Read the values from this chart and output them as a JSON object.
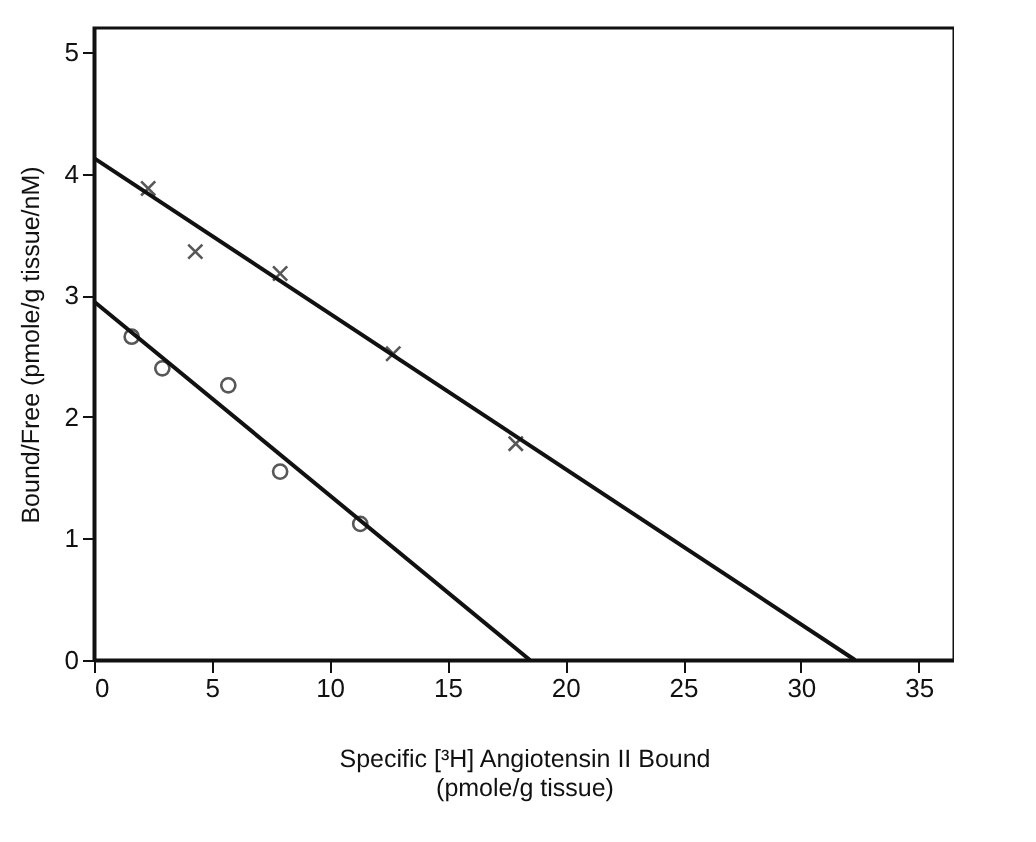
{
  "chart_data": {
    "type": "scatter",
    "xlabel": "Specific [³H] Angiotensin II Bound\n(pmole/g tissue)",
    "ylabel": "Bound/Free (pmole/g tissue/nM)",
    "xlim": [
      0,
      36.5
    ],
    "ylim": [
      0,
      5.2
    ],
    "xticks": [
      0,
      5,
      10,
      15,
      20,
      25,
      30,
      35
    ],
    "yticks": [
      0,
      1,
      2,
      3,
      4,
      5
    ],
    "grid": false,
    "series": [
      {
        "marker": "cross",
        "color": "#111111",
        "x": [
          2.3,
          4.3,
          7.9,
          12.7,
          17.9
        ],
        "values": [
          3.88,
          3.36,
          3.18,
          2.52,
          1.78
        ]
      },
      {
        "marker": "circle",
        "color": "#111111",
        "x": [
          1.6,
          2.9,
          5.7,
          7.9,
          11.3
        ],
        "values": [
          2.66,
          2.4,
          2.26,
          1.55,
          1.12
        ]
      },
      {
        "type": "line",
        "marker": "none",
        "color": "#111111",
        "x": [
          0,
          32.3
        ],
        "values": [
          4.13,
          0
        ]
      },
      {
        "type": "line",
        "marker": "none",
        "color": "#111111",
        "x": [
          0,
          18.5
        ],
        "values": [
          2.95,
          0
        ]
      }
    ]
  }
}
